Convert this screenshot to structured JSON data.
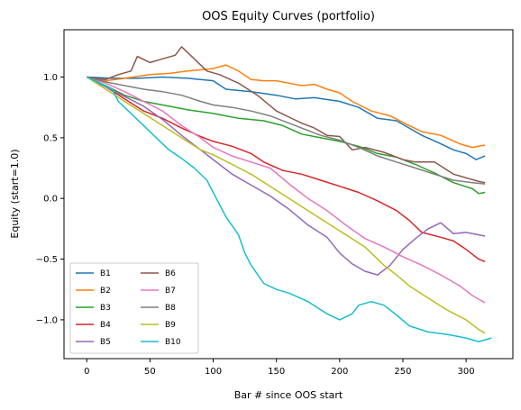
{
  "chart_data": {
    "type": "line",
    "title": "OOS Equity Curves (portfolio)",
    "xlabel": "Bar # since OOS start",
    "ylabel": "Equity (start=1.0)",
    "xlim": [
      -18,
      337
    ],
    "ylim": [
      -1.32,
      1.39
    ],
    "xticks": [
      0,
      50,
      100,
      150,
      200,
      250,
      300
    ],
    "yticks": [
      1.0,
      0.5,
      0.0,
      -0.5,
      -1.0
    ],
    "ytick_labels": [
      "1.0",
      "0.5",
      "0.0",
      "−0.5",
      "−1.0"
    ],
    "grid": false,
    "legend": {
      "placement": "lower-left",
      "columns": 2
    },
    "series": [
      {
        "name": "B1",
        "color": "#1f77b4",
        "points": [
          [
            0,
            1.0
          ],
          [
            20,
            0.99
          ],
          [
            40,
            0.99
          ],
          [
            60,
            1.0
          ],
          [
            80,
            0.99
          ],
          [
            100,
            0.97
          ],
          [
            110,
            0.9
          ],
          [
            130,
            0.88
          ],
          [
            150,
            0.85
          ],
          [
            165,
            0.82
          ],
          [
            180,
            0.83
          ],
          [
            200,
            0.8
          ],
          [
            215,
            0.75
          ],
          [
            230,
            0.66
          ],
          [
            245,
            0.64
          ],
          [
            255,
            0.58
          ],
          [
            265,
            0.52
          ],
          [
            280,
            0.45
          ],
          [
            290,
            0.4
          ],
          [
            300,
            0.37
          ],
          [
            308,
            0.32
          ],
          [
            315,
            0.35
          ]
        ]
      },
      {
        "name": "B2",
        "color": "#ff7f0e",
        "points": [
          [
            0,
            1.0
          ],
          [
            15,
            0.97
          ],
          [
            30,
            0.99
          ],
          [
            50,
            1.02
          ],
          [
            65,
            1.03
          ],
          [
            80,
            1.05
          ],
          [
            100,
            1.07
          ],
          [
            110,
            1.1
          ],
          [
            120,
            1.05
          ],
          [
            130,
            0.98
          ],
          [
            140,
            0.97
          ],
          [
            150,
            0.97
          ],
          [
            160,
            0.95
          ],
          [
            170,
            0.93
          ],
          [
            180,
            0.94
          ],
          [
            190,
            0.9
          ],
          [
            200,
            0.87
          ],
          [
            210,
            0.8
          ],
          [
            225,
            0.72
          ],
          [
            240,
            0.68
          ],
          [
            255,
            0.6
          ],
          [
            265,
            0.55
          ],
          [
            280,
            0.52
          ],
          [
            295,
            0.45
          ],
          [
            305,
            0.42
          ],
          [
            315,
            0.44
          ]
        ]
      },
      {
        "name": "B3",
        "color": "#2ca02c",
        "points": [
          [
            0,
            1.0
          ],
          [
            15,
            0.93
          ],
          [
            30,
            0.85
          ],
          [
            45,
            0.8
          ],
          [
            60,
            0.77
          ],
          [
            80,
            0.73
          ],
          [
            100,
            0.7
          ],
          [
            120,
            0.66
          ],
          [
            140,
            0.64
          ],
          [
            155,
            0.6
          ],
          [
            170,
            0.53
          ],
          [
            185,
            0.5
          ],
          [
            200,
            0.47
          ],
          [
            215,
            0.43
          ],
          [
            230,
            0.37
          ],
          [
            245,
            0.34
          ],
          [
            260,
            0.28
          ],
          [
            275,
            0.21
          ],
          [
            290,
            0.13
          ],
          [
            305,
            0.08
          ],
          [
            310,
            0.04
          ],
          [
            315,
            0.05
          ]
        ]
      },
      {
        "name": "B4",
        "color": "#d62728",
        "points": [
          [
            0,
            1.0
          ],
          [
            15,
            0.92
          ],
          [
            30,
            0.82
          ],
          [
            45,
            0.72
          ],
          [
            60,
            0.66
          ],
          [
            75,
            0.58
          ],
          [
            90,
            0.51
          ],
          [
            100,
            0.47
          ],
          [
            115,
            0.43
          ],
          [
            130,
            0.37
          ],
          [
            140,
            0.3
          ],
          [
            155,
            0.23
          ],
          [
            170,
            0.2
          ],
          [
            185,
            0.15
          ],
          [
            200,
            0.1
          ],
          [
            215,
            0.05
          ],
          [
            230,
            -0.02
          ],
          [
            245,
            -0.1
          ],
          [
            255,
            -0.18
          ],
          [
            265,
            -0.28
          ],
          [
            280,
            -0.32
          ],
          [
            290,
            -0.35
          ],
          [
            300,
            -0.42
          ],
          [
            310,
            -0.5
          ],
          [
            315,
            -0.52
          ]
        ]
      },
      {
        "name": "B5",
        "color": "#9467bd",
        "points": [
          [
            0,
            1.0
          ],
          [
            15,
            0.92
          ],
          [
            30,
            0.84
          ],
          [
            45,
            0.76
          ],
          [
            60,
            0.65
          ],
          [
            75,
            0.52
          ],
          [
            90,
            0.4
          ],
          [
            100,
            0.32
          ],
          [
            115,
            0.2
          ],
          [
            130,
            0.11
          ],
          [
            145,
            0.02
          ],
          [
            160,
            -0.09
          ],
          [
            175,
            -0.22
          ],
          [
            190,
            -0.32
          ],
          [
            200,
            -0.45
          ],
          [
            210,
            -0.54
          ],
          [
            220,
            -0.6
          ],
          [
            230,
            -0.63
          ],
          [
            240,
            -0.55
          ],
          [
            250,
            -0.42
          ],
          [
            260,
            -0.33
          ],
          [
            270,
            -0.25
          ],
          [
            280,
            -0.2
          ],
          [
            290,
            -0.29
          ],
          [
            300,
            -0.28
          ],
          [
            310,
            -0.3
          ],
          [
            315,
            -0.31
          ]
        ]
      },
      {
        "name": "B6",
        "color": "#8c564b",
        "points": [
          [
            0,
            1.0
          ],
          [
            15,
            0.98
          ],
          [
            25,
            1.02
          ],
          [
            35,
            1.05
          ],
          [
            40,
            1.17
          ],
          [
            50,
            1.12
          ],
          [
            60,
            1.15
          ],
          [
            70,
            1.18
          ],
          [
            75,
            1.25
          ],
          [
            85,
            1.15
          ],
          [
            95,
            1.05
          ],
          [
            105,
            1.02
          ],
          [
            120,
            0.95
          ],
          [
            135,
            0.85
          ],
          [
            150,
            0.72
          ],
          [
            160,
            0.67
          ],
          [
            170,
            0.62
          ],
          [
            180,
            0.58
          ],
          [
            190,
            0.52
          ],
          [
            200,
            0.51
          ],
          [
            210,
            0.4
          ],
          [
            220,
            0.42
          ],
          [
            235,
            0.38
          ],
          [
            250,
            0.32
          ],
          [
            260,
            0.3
          ],
          [
            275,
            0.3
          ],
          [
            290,
            0.2
          ],
          [
            300,
            0.17
          ],
          [
            310,
            0.14
          ],
          [
            315,
            0.13
          ]
        ]
      },
      {
        "name": "B7",
        "color": "#e377c2",
        "points": [
          [
            0,
            1.0
          ],
          [
            15,
            0.95
          ],
          [
            30,
            0.88
          ],
          [
            45,
            0.8
          ],
          [
            60,
            0.72
          ],
          [
            75,
            0.6
          ],
          [
            90,
            0.5
          ],
          [
            100,
            0.42
          ],
          [
            115,
            0.35
          ],
          [
            130,
            0.3
          ],
          [
            145,
            0.25
          ],
          [
            160,
            0.12
          ],
          [
            175,
            0.0
          ],
          [
            190,
            -0.1
          ],
          [
            205,
            -0.22
          ],
          [
            220,
            -0.33
          ],
          [
            235,
            -0.4
          ],
          [
            250,
            -0.48
          ],
          [
            265,
            -0.55
          ],
          [
            280,
            -0.63
          ],
          [
            295,
            -0.72
          ],
          [
            305,
            -0.8
          ],
          [
            315,
            -0.86
          ]
        ]
      },
      {
        "name": "B8",
        "color": "#7f7f7f",
        "points": [
          [
            0,
            1.0
          ],
          [
            15,
            0.96
          ],
          [
            30,
            0.93
          ],
          [
            45,
            0.9
          ],
          [
            60,
            0.88
          ],
          [
            75,
            0.85
          ],
          [
            90,
            0.8
          ],
          [
            100,
            0.77
          ],
          [
            115,
            0.75
          ],
          [
            130,
            0.72
          ],
          [
            145,
            0.68
          ],
          [
            160,
            0.62
          ],
          [
            175,
            0.56
          ],
          [
            185,
            0.52
          ],
          [
            200,
            0.48
          ],
          [
            215,
            0.42
          ],
          [
            230,
            0.35
          ],
          [
            245,
            0.3
          ],
          [
            260,
            0.25
          ],
          [
            275,
            0.2
          ],
          [
            290,
            0.15
          ],
          [
            305,
            0.13
          ],
          [
            315,
            0.12
          ]
        ]
      },
      {
        "name": "B9",
        "color": "#bcbd22",
        "points": [
          [
            0,
            1.0
          ],
          [
            15,
            0.9
          ],
          [
            30,
            0.8
          ],
          [
            45,
            0.7
          ],
          [
            60,
            0.6
          ],
          [
            75,
            0.5
          ],
          [
            90,
            0.4
          ],
          [
            100,
            0.36
          ],
          [
            115,
            0.28
          ],
          [
            130,
            0.2
          ],
          [
            145,
            0.1
          ],
          [
            160,
            0.0
          ],
          [
            175,
            -0.1
          ],
          [
            190,
            -0.2
          ],
          [
            205,
            -0.3
          ],
          [
            220,
            -0.4
          ],
          [
            235,
            -0.55
          ],
          [
            245,
            -0.63
          ],
          [
            255,
            -0.72
          ],
          [
            270,
            -0.82
          ],
          [
            285,
            -0.92
          ],
          [
            300,
            -1.0
          ],
          [
            310,
            -1.08
          ],
          [
            315,
            -1.11
          ]
        ]
      },
      {
        "name": "B10",
        "color": "#17becf",
        "points": [
          [
            0,
            1.0
          ],
          [
            10,
            0.95
          ],
          [
            20,
            0.9
          ],
          [
            25,
            0.8
          ],
          [
            35,
            0.7
          ],
          [
            45,
            0.6
          ],
          [
            55,
            0.5
          ],
          [
            65,
            0.4
          ],
          [
            75,
            0.33
          ],
          [
            85,
            0.25
          ],
          [
            95,
            0.15
          ],
          [
            100,
            0.05
          ],
          [
            105,
            -0.05
          ],
          [
            110,
            -0.15
          ],
          [
            120,
            -0.3
          ],
          [
            125,
            -0.45
          ],
          [
            130,
            -0.55
          ],
          [
            140,
            -0.7
          ],
          [
            150,
            -0.75
          ],
          [
            160,
            -0.78
          ],
          [
            175,
            -0.85
          ],
          [
            190,
            -0.95
          ],
          [
            200,
            -1.0
          ],
          [
            210,
            -0.95
          ],
          [
            215,
            -0.88
          ],
          [
            225,
            -0.85
          ],
          [
            235,
            -0.88
          ],
          [
            245,
            -0.96
          ],
          [
            255,
            -1.05
          ],
          [
            270,
            -1.1
          ],
          [
            285,
            -1.12
          ],
          [
            300,
            -1.15
          ],
          [
            310,
            -1.18
          ],
          [
            320,
            -1.15
          ]
        ]
      }
    ]
  }
}
